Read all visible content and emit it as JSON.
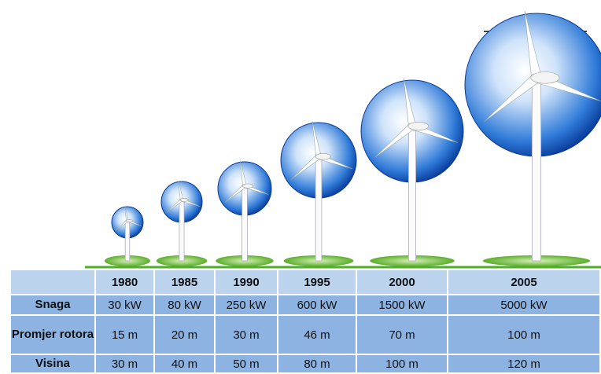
{
  "table": {
    "columns": [
      "1980",
      "1985",
      "1990",
      "1995",
      "2000",
      "2005"
    ],
    "rows": [
      {
        "label": "Snaga",
        "values": [
          "30 kW",
          "80 kW",
          "250 kW",
          "600 kW",
          "1500 kW",
          "5000 kW"
        ]
      },
      {
        "label": "Promjer rotora",
        "values": [
          "15 m",
          "20 m",
          "30 m",
          "46 m",
          "70 m",
          "100 m"
        ]
      },
      {
        "label": "Visina",
        "values": [
          "30 m",
          "40 m",
          "50 m",
          "80 m",
          "100 m",
          "120 m"
        ]
      }
    ]
  }
}
